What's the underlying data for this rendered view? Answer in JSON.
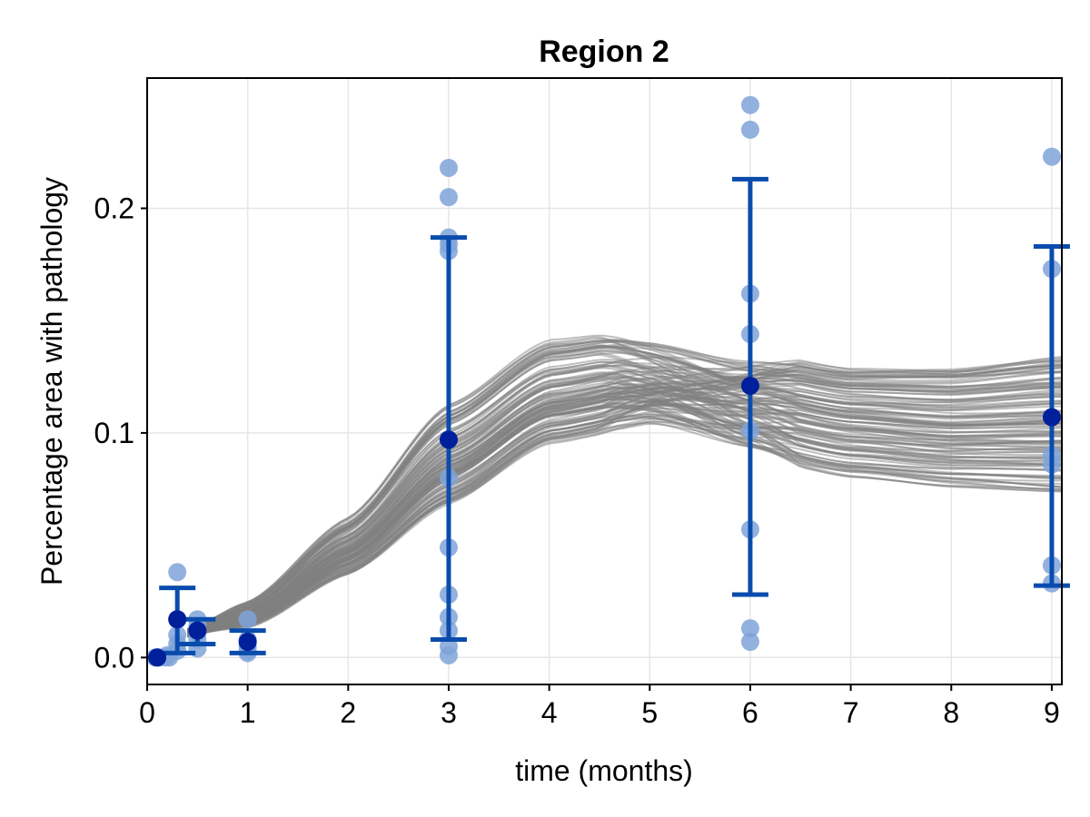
{
  "chart_data": {
    "type": "scatter",
    "title": "Region 2",
    "xlabel": "time (months)",
    "ylabel": "Percentage area with pathology",
    "xlim": [
      0,
      9.1
    ],
    "ylim": [
      -0.012,
      0.258
    ],
    "xticks": [
      0,
      1,
      2,
      3,
      4,
      5,
      6,
      7,
      8,
      9
    ],
    "yticks": [
      0.0,
      0.1,
      0.2
    ],
    "ytick_labels": [
      "0.0",
      "0.1",
      "0.2"
    ],
    "grid": true,
    "colors": {
      "observation": "#7fa3d9",
      "mean": "#001f9b",
      "errorbar": "#0a4cad",
      "posterior_curve": "#7f7f7f"
    },
    "observations": [
      {
        "x": 0.08,
        "y": 0.0
      },
      {
        "x": 0.1,
        "y": 0.0
      },
      {
        "x": 0.12,
        "y": 0.0
      },
      {
        "x": 0.18,
        "y": 0.0
      },
      {
        "x": 0.2,
        "y": 0.001
      },
      {
        "x": 0.22,
        "y": 0.0
      },
      {
        "x": 0.3,
        "y": 0.038
      },
      {
        "x": 0.3,
        "y": 0.017
      },
      {
        "x": 0.3,
        "y": 0.01
      },
      {
        "x": 0.3,
        "y": 0.006
      },
      {
        "x": 0.3,
        "y": 0.003
      },
      {
        "x": 0.5,
        "y": 0.017
      },
      {
        "x": 0.5,
        "y": 0.014
      },
      {
        "x": 0.5,
        "y": 0.011
      },
      {
        "x": 0.5,
        "y": 0.008
      },
      {
        "x": 0.5,
        "y": 0.004
      },
      {
        "x": 1,
        "y": 0.017
      },
      {
        "x": 1,
        "y": 0.008
      },
      {
        "x": 1,
        "y": 0.005
      },
      {
        "x": 1,
        "y": 0.003
      },
      {
        "x": 1,
        "y": 0.002
      },
      {
        "x": 3,
        "y": 0.218
      },
      {
        "x": 3,
        "y": 0.205
      },
      {
        "x": 3,
        "y": 0.187
      },
      {
        "x": 3,
        "y": 0.184
      },
      {
        "x": 3,
        "y": 0.181
      },
      {
        "x": 3,
        "y": 0.08
      },
      {
        "x": 3,
        "y": 0.049
      },
      {
        "x": 3,
        "y": 0.028
      },
      {
        "x": 3,
        "y": 0.018
      },
      {
        "x": 3,
        "y": 0.012
      },
      {
        "x": 3,
        "y": 0.005
      },
      {
        "x": 3,
        "y": 0.001
      },
      {
        "x": 6,
        "y": 0.246
      },
      {
        "x": 6,
        "y": 0.235
      },
      {
        "x": 6,
        "y": 0.162
      },
      {
        "x": 6,
        "y": 0.144
      },
      {
        "x": 6,
        "y": 0.101
      },
      {
        "x": 6,
        "y": 0.057
      },
      {
        "x": 6,
        "y": 0.013
      },
      {
        "x": 6,
        "y": 0.007
      },
      {
        "x": 9,
        "y": 0.223
      },
      {
        "x": 9,
        "y": 0.173
      },
      {
        "x": 9,
        "y": 0.09
      },
      {
        "x": 9,
        "y": 0.086
      },
      {
        "x": 9,
        "y": 0.041
      },
      {
        "x": 9,
        "y": 0.033
      }
    ],
    "means": [
      {
        "x": 0.1,
        "y": 0.0,
        "lower": 0.0,
        "upper": 0.0
      },
      {
        "x": 0.3,
        "y": 0.017,
        "lower": 0.002,
        "upper": 0.031
      },
      {
        "x": 0.5,
        "y": 0.012,
        "lower": 0.006,
        "upper": 0.017
      },
      {
        "x": 1,
        "y": 0.007,
        "lower": 0.002,
        "upper": 0.012
      },
      {
        "x": 3,
        "y": 0.097,
        "lower": 0.008,
        "upper": 0.187
      },
      {
        "x": 6,
        "y": 0.121,
        "lower": 0.028,
        "upper": 0.213
      },
      {
        "x": 9,
        "y": 0.107,
        "lower": 0.032,
        "upper": 0.183
      }
    ],
    "posterior_curves": {
      "count": 120,
      "x": [
        0.4,
        1,
        2,
        3,
        4,
        4.7,
        5,
        6,
        7,
        8,
        9.1
      ],
      "median": [
        0.011,
        0.019,
        0.049,
        0.09,
        0.118,
        0.123,
        0.122,
        0.115,
        0.108,
        0.105,
        0.106
      ],
      "band_low": [
        0.011,
        0.014,
        0.038,
        0.069,
        0.096,
        0.101,
        0.102,
        0.089,
        0.08,
        0.076,
        0.074
      ],
      "band_high": [
        0.011,
        0.024,
        0.062,
        0.113,
        0.142,
        0.145,
        0.144,
        0.135,
        0.128,
        0.128,
        0.133
      ]
    }
  }
}
